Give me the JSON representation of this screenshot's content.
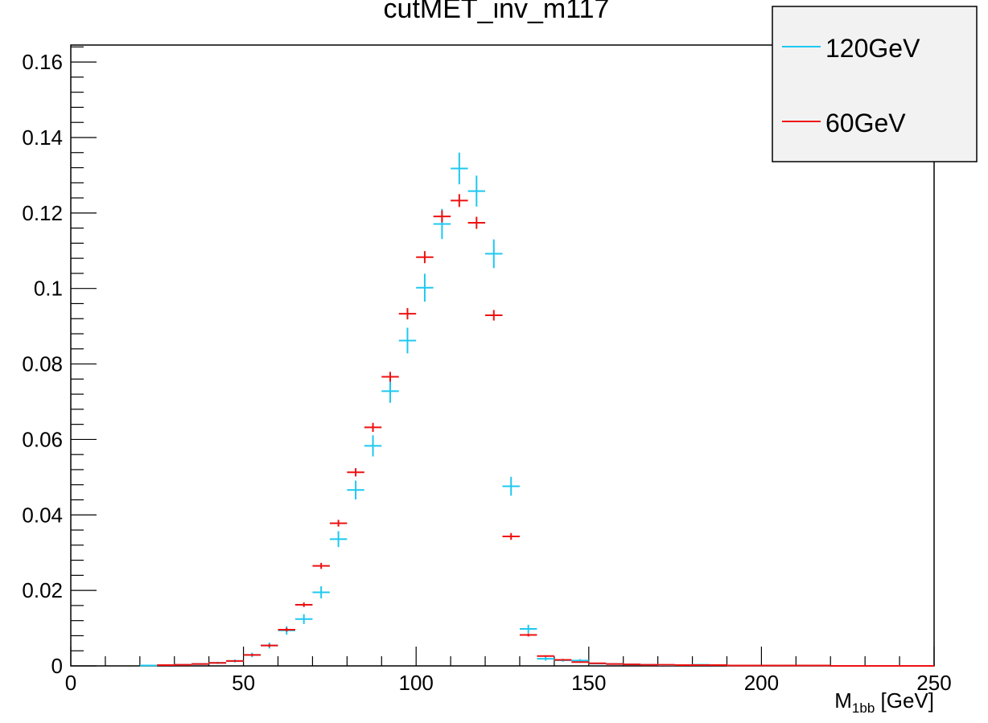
{
  "chart_data": {
    "type": "scatter",
    "title": "cutMET_inv_m117",
    "xlabel": {
      "main": "M",
      "sub": "1bb",
      "unit": " [GeV]"
    },
    "ylabel": "",
    "xlim": [
      0,
      250
    ],
    "ylim": [
      0,
      0.1645
    ],
    "x_ticks": [
      0,
      50,
      100,
      150,
      200,
      250
    ],
    "y_ticks": [
      0,
      0.02,
      0.04,
      0.06,
      0.08,
      0.1,
      0.12,
      0.14,
      0.16
    ],
    "y_tick_labels": [
      "0",
      "0.02",
      "0.04",
      "0.06",
      "0.08",
      "0.1",
      "0.12",
      "0.14",
      "0.16"
    ],
    "x_tick_labels": [
      "0",
      "50",
      "100",
      "150",
      "200",
      "250"
    ],
    "grid": false,
    "legend_position": "top-right",
    "bin_width": 5,
    "series": [
      {
        "name": "120GeV",
        "color": "#1ec8f0",
        "x": [
          22.5,
          27.5,
          32.5,
          37.5,
          42.5,
          47.5,
          52.5,
          57.5,
          62.5,
          67.5,
          72.5,
          77.5,
          82.5,
          87.5,
          92.5,
          97.5,
          102.5,
          107.5,
          112.5,
          117.5,
          122.5,
          127.5,
          132.5,
          137.5,
          142.5,
          147.5,
          152.5,
          157.5,
          162.5,
          167.5,
          172.5,
          177.5,
          182.5
        ],
        "y": [
          0.0001,
          0.0002,
          0.0003,
          0.0005,
          0.0008,
          0.0013,
          0.0029,
          0.0054,
          0.0094,
          0.0124,
          0.0195,
          0.0336,
          0.0466,
          0.0583,
          0.0728,
          0.0862,
          0.1002,
          0.1171,
          0.1318,
          0.1258,
          0.1092,
          0.0476,
          0.0098,
          0.0019,
          0.0015,
          0.0014,
          0.0006,
          0.0005,
          0.0004,
          0.0003,
          0.0002,
          0.0002,
          0.0003
        ],
        "err": [
          0.0001,
          0.0001,
          0.0001,
          0.0002,
          0.0003,
          0.0004,
          0.0006,
          0.0008,
          0.0011,
          0.0013,
          0.0016,
          0.0021,
          0.0025,
          0.0028,
          0.0031,
          0.0034,
          0.0037,
          0.004,
          0.0042,
          0.0041,
          0.0038,
          0.0025,
          0.0011,
          0.0005,
          0.0004,
          0.0004,
          0.0002,
          0.0002,
          0.0002,
          0.0002,
          0.0001,
          0.0001,
          0.0002
        ]
      },
      {
        "name": "60GeV",
        "color": "#ee1111",
        "x": [
          27.5,
          32.5,
          37.5,
          42.5,
          47.5,
          52.5,
          57.5,
          62.5,
          67.5,
          72.5,
          77.5,
          82.5,
          87.5,
          92.5,
          97.5,
          102.5,
          107.5,
          112.5,
          117.5,
          122.5,
          127.5,
          132.5,
          137.5,
          142.5,
          147.5,
          152.5,
          157.5,
          162.5,
          167.5,
          172.5,
          177.5,
          182.5,
          187.5,
          192.5,
          197.5,
          202.5,
          207.5,
          212.5,
          217.5,
          222.5,
          227.5,
          232.5,
          237.5,
          242.5,
          247.5
        ],
        "y": [
          0.0002,
          0.0003,
          0.0005,
          0.0008,
          0.0013,
          0.0029,
          0.0054,
          0.0096,
          0.0162,
          0.0265,
          0.0378,
          0.0513,
          0.0632,
          0.0766,
          0.0933,
          0.1083,
          0.1191,
          0.1233,
          0.1174,
          0.0929,
          0.0343,
          0.0082,
          0.0026,
          0.0016,
          0.001,
          0.0007,
          0.0005,
          0.0004,
          0.0003,
          0.0003,
          0.0002,
          0.0002,
          0.0002,
          0.0001,
          0.0001,
          0.0001,
          0.0001,
          0.0001,
          0.0001,
          0.0,
          0.0,
          0.0,
          0.0,
          0.0,
          0.0
        ],
        "err": [
          0.0001,
          0.0001,
          0.0001,
          0.0001,
          0.0002,
          0.0003,
          0.0004,
          0.0005,
          0.0006,
          0.0008,
          0.0009,
          0.0011,
          0.0012,
          0.0013,
          0.0015,
          0.0016,
          0.0016,
          0.0017,
          0.0016,
          0.0014,
          0.0009,
          0.0004,
          0.0002,
          0.0002,
          0.0001,
          0.0001,
          0.0001,
          0.0001,
          0.0001,
          0.0001,
          0.0001,
          0.0001,
          0.0001,
          0.0,
          0.0,
          0.0,
          0.0,
          0.0,
          0.0,
          0.0,
          0.0,
          0.0,
          0.0,
          0.0,
          0.0
        ]
      }
    ]
  }
}
